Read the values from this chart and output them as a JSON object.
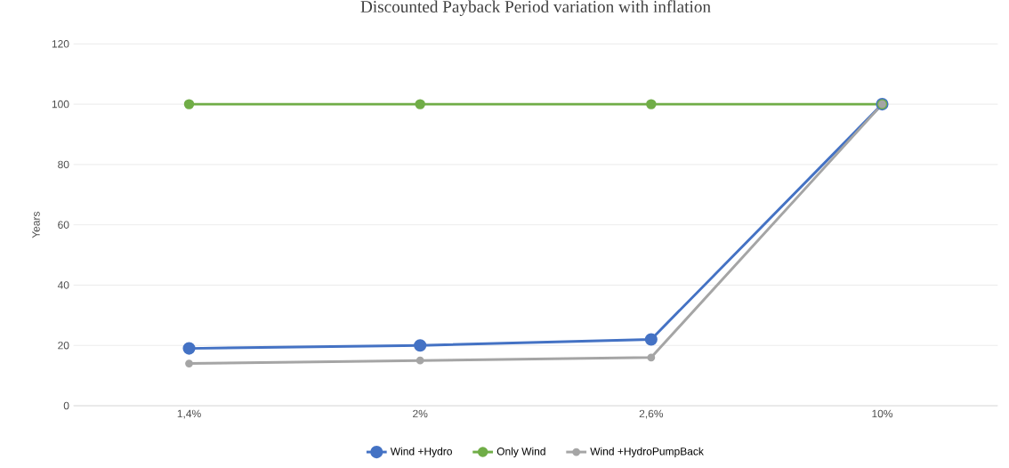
{
  "chart_data": {
    "type": "line",
    "title": "Discounted Payback Period variation with inflation",
    "ylabel": "Years",
    "categories": [
      "1,4%",
      "2%",
      "2,6%",
      "10%"
    ],
    "series": [
      {
        "name": "Wind +Hydro",
        "color": "#4472c4",
        "values": [
          19,
          20,
          22,
          100
        ]
      },
      {
        "name": "Only Wind",
        "color": "#70ad47",
        "values": [
          100,
          100,
          100,
          100
        ]
      },
      {
        "name": "Wind +HydroPumpBack",
        "color": "#a5a5a5",
        "values": [
          14,
          15,
          16,
          100
        ]
      }
    ],
    "ylim": [
      0,
      120
    ],
    "yticks": [
      0,
      20,
      40,
      60,
      80,
      100,
      120
    ],
    "grid": "y",
    "legend": "bottom",
    "marker": "circle"
  }
}
